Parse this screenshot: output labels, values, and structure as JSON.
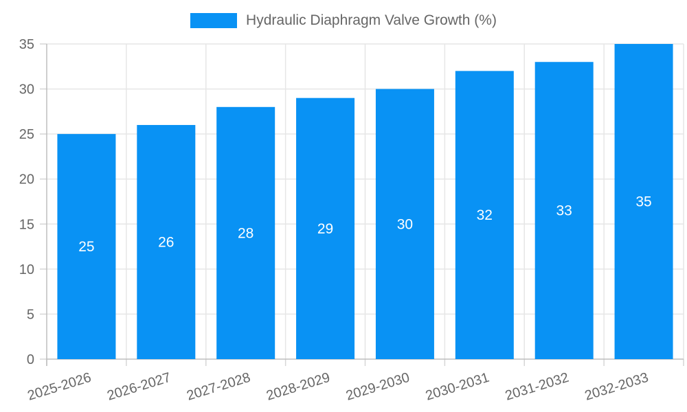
{
  "legend": {
    "label": "Hydraulic Diaphragm Valve Growth (%)"
  },
  "chart_data": {
    "type": "bar",
    "title": "Hydraulic Diaphragm Valve Growth (%)",
    "categories": [
      "2025-2026",
      "2026-2027",
      "2027-2028",
      "2028-2029",
      "2029-2030",
      "2030-2031",
      "2031-2032",
      "2032-2033"
    ],
    "values": [
      25,
      26,
      28,
      29,
      30,
      32,
      33,
      35
    ],
    "xlabel": "",
    "ylabel": "",
    "ylim": [
      0,
      35
    ],
    "yticks": [
      0,
      5,
      10,
      15,
      20,
      25,
      30,
      35
    ],
    "grid": true,
    "legend_position": "top-center",
    "bar_value_labels": [
      25,
      26,
      28,
      29,
      30,
      32,
      33,
      35
    ],
    "colors": {
      "bar": "#0992f4",
      "grid": "#e6e6e6",
      "axis_border": "#bdbdbd",
      "tick_mark": "#d6d6d6",
      "axis_text": "#666666",
      "value_label_text": "#ffffff"
    }
  }
}
